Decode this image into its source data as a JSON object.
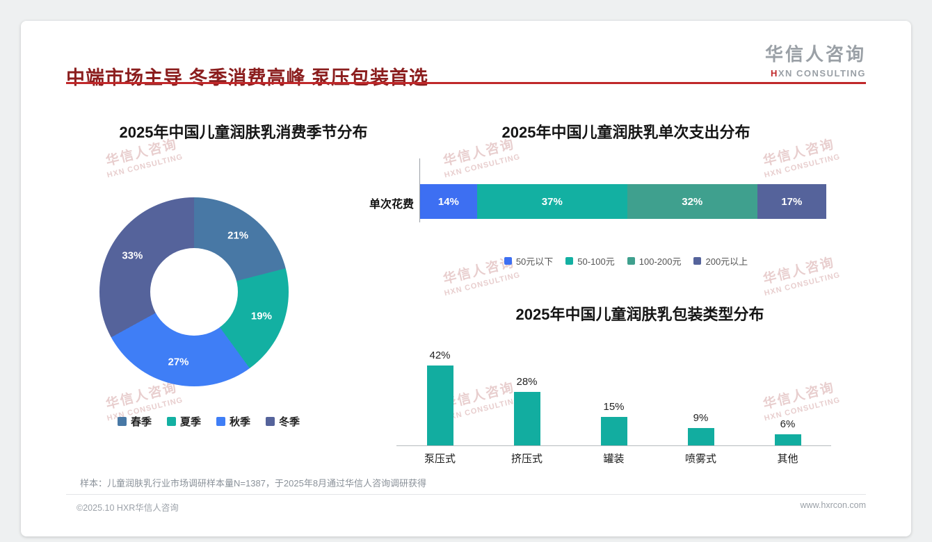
{
  "header": {
    "title": "中端市场主导 冬季消费高峰 泵压包装首选",
    "logo": {
      "name": "华信人咨询",
      "tagline": "HXN CONSULTING"
    }
  },
  "watermark": {
    "line1": "华信人咨询",
    "line2": "HXN CONSULTING"
  },
  "footnote": "样本：儿童润肤乳行业市场调研样本量N=1387，于2025年8月通过华信人咨询调研获得",
  "footer": {
    "copyright": "©2025.10 HXR华信人咨询",
    "website": "www.hxrcon.com"
  },
  "colors": {
    "accent_red": "#c0282a",
    "title_maroon": "#8b1e1e",
    "teal": "#12ada0"
  },
  "chart_data": [
    {
      "id": "season-donut",
      "type": "pie",
      "donut": true,
      "title": "2025年中国儿童润肤乳消费季节分布",
      "labels": [
        "春季",
        "夏季",
        "秋季",
        "冬季"
      ],
      "values": [
        21,
        19,
        27,
        33
      ],
      "colors": [
        "#4878a5",
        "#13b0a2",
        "#3f7ef6",
        "#55639b"
      ],
      "unit": "%",
      "legend_position": "bottom"
    },
    {
      "id": "spend-stacked-bar",
      "type": "bar",
      "subtype": "horizontal-stacked",
      "title": "2025年中国儿童润肤乳单次支出分布",
      "row_label": "单次花费",
      "categories": [
        "50元以下",
        "50-100元",
        "100-200元",
        "200元以上"
      ],
      "values": [
        14,
        37,
        32,
        17
      ],
      "colors": [
        "#3d6ff2",
        "#13b0a2",
        "#3fa08e",
        "#55639b"
      ],
      "unit": "%",
      "xlim": [
        0,
        100
      ],
      "legend_position": "bottom"
    },
    {
      "id": "packaging-bar",
      "type": "bar",
      "title": "2025年中国儿童润肤乳包装类型分布",
      "categories": [
        "泵压式",
        "挤压式",
        "罐装",
        "喷雾式",
        "其他"
      ],
      "values": [
        42,
        28,
        15,
        9,
        6
      ],
      "bar_color": "#12ada0",
      "unit": "%",
      "ylim": [
        0,
        45
      ],
      "grid": false
    }
  ]
}
